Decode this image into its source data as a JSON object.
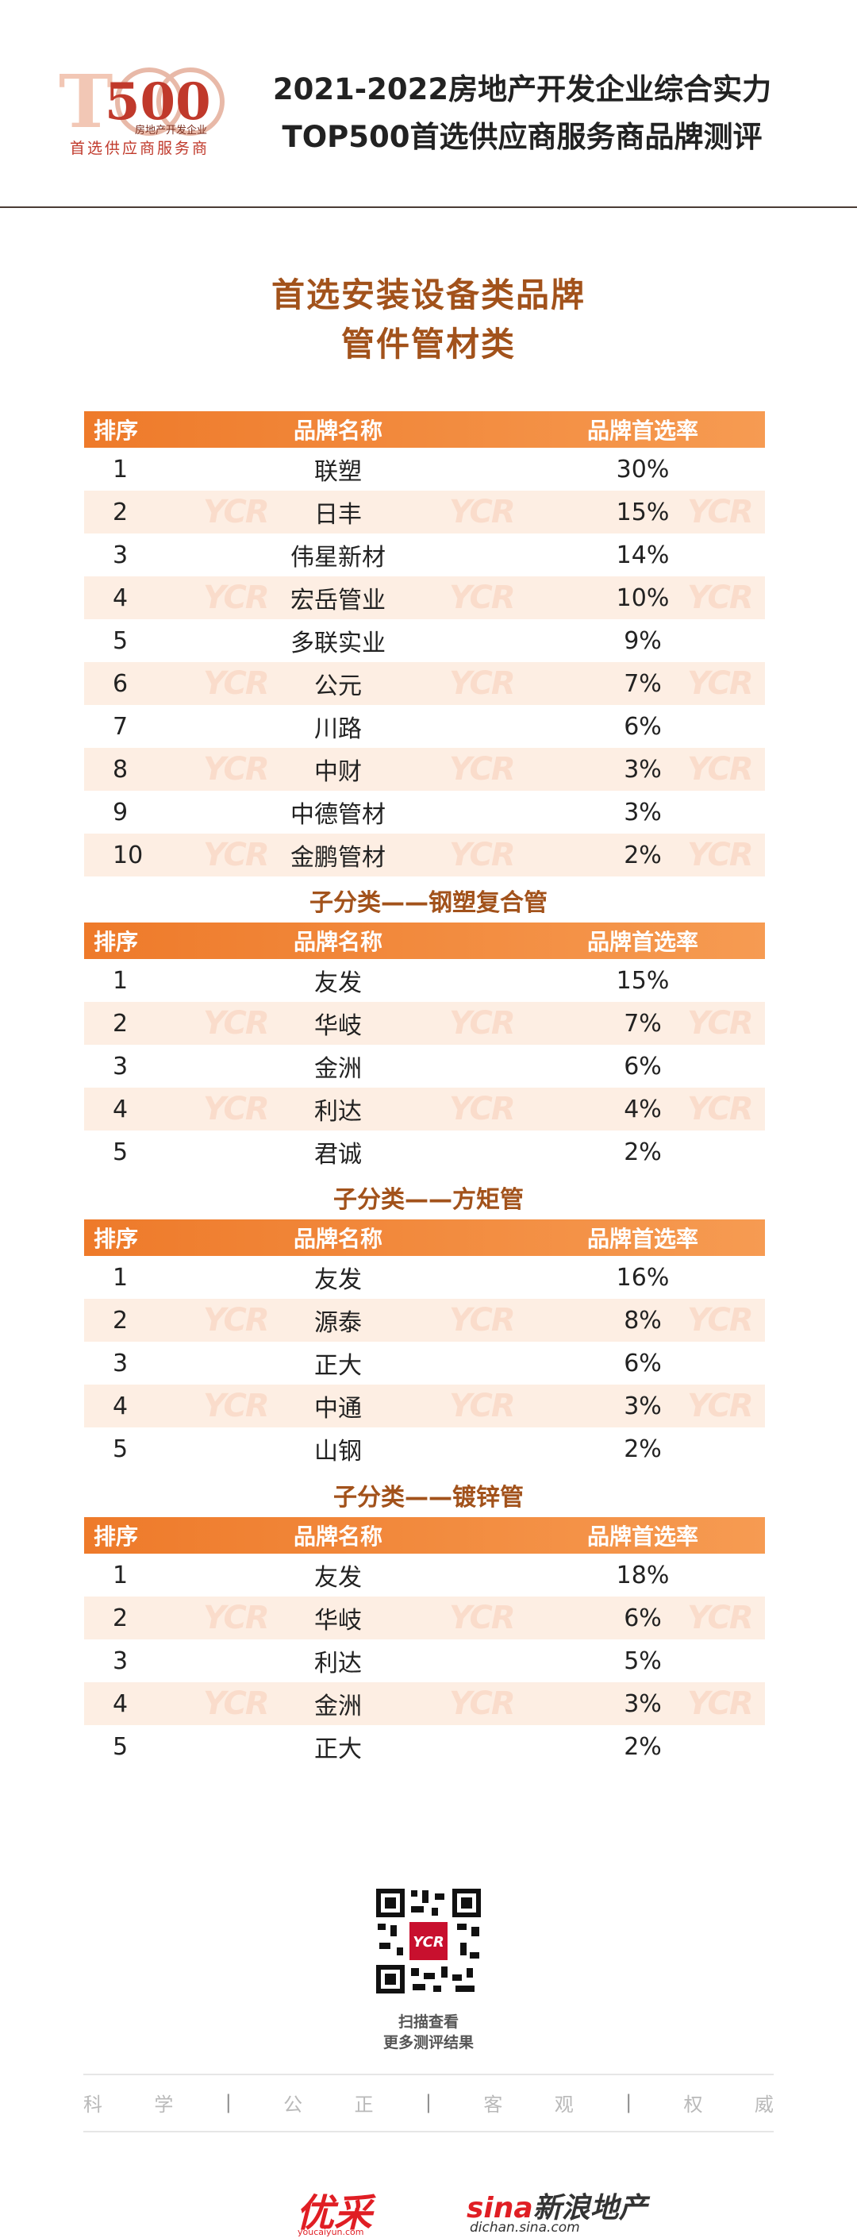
{
  "header": {
    "logo_number": "500",
    "logo_caption": "房地产开发企业",
    "logo_sub": "首选供应商服务商",
    "title_line1": "2021-2022房地产开发企业综合实力",
    "title_line2": "TOP500首选供应商服务商品牌测评"
  },
  "main": {
    "title_line1": "首选安装设备类品牌",
    "title_line2": "管件管材类"
  },
  "table_header": {
    "col_rank": "排序",
    "col_brand": "品牌名称",
    "col_rate": "品牌首选率"
  },
  "watermark": "YCR",
  "sections": [
    {
      "subtitle": "",
      "rows": [
        {
          "rank": "1",
          "brand": "联塑",
          "rate": "30%"
        },
        {
          "rank": "2",
          "brand": "日丰",
          "rate": "15%"
        },
        {
          "rank": "3",
          "brand": "伟星新材",
          "rate": "14%"
        },
        {
          "rank": "4",
          "brand": "宏岳管业",
          "rate": "10%"
        },
        {
          "rank": "5",
          "brand": "多联实业",
          "rate": "9%"
        },
        {
          "rank": "6",
          "brand": "公元",
          "rate": "7%"
        },
        {
          "rank": "7",
          "brand": "川路",
          "rate": "6%"
        },
        {
          "rank": "8",
          "brand": "中财",
          "rate": "3%"
        },
        {
          "rank": "9",
          "brand": "中德管材",
          "rate": "3%"
        },
        {
          "rank": "10",
          "brand": "金鹏管材",
          "rate": "2%"
        }
      ]
    },
    {
      "subtitle": "子分类——钢塑复合管",
      "rows": [
        {
          "rank": "1",
          "brand": "友发",
          "rate": "15%"
        },
        {
          "rank": "2",
          "brand": "华岐",
          "rate": "7%"
        },
        {
          "rank": "3",
          "brand": "金洲",
          "rate": "6%"
        },
        {
          "rank": "4",
          "brand": "利达",
          "rate": "4%"
        },
        {
          "rank": "5",
          "brand": "君诚",
          "rate": "2%"
        }
      ]
    },
    {
      "subtitle": "子分类——方矩管",
      "rows": [
        {
          "rank": "1",
          "brand": "友发",
          "rate": "16%"
        },
        {
          "rank": "2",
          "brand": "源泰",
          "rate": "8%"
        },
        {
          "rank": "3",
          "brand": "正大",
          "rate": "6%"
        },
        {
          "rank": "4",
          "brand": "中通",
          "rate": "3%"
        },
        {
          "rank": "5",
          "brand": "山钢",
          "rate": "2%"
        }
      ]
    },
    {
      "subtitle": "子分类——镀锌管",
      "rows": [
        {
          "rank": "1",
          "brand": "友发",
          "rate": "18%"
        },
        {
          "rank": "2",
          "brand": "华岐",
          "rate": "6%"
        },
        {
          "rank": "3",
          "brand": "利达",
          "rate": "5%"
        },
        {
          "rank": "4",
          "brand": "金洲",
          "rate": "3%"
        },
        {
          "rank": "5",
          "brand": "正大",
          "rate": "2%"
        }
      ]
    }
  ],
  "footer": {
    "qr_line1": "扫描查看",
    "qr_line2": "更多测评结果",
    "motto": [
      "科",
      "学",
      "公",
      "正",
      "客",
      "观",
      "权",
      "威"
    ],
    "logo1": "优采",
    "logo1_sub": "youcaiyun.com",
    "logo2_red": "sina",
    "logo2_text": "新浪地产",
    "logo2_sub": "dichan.sina.com"
  },
  "colors": {
    "accent": "#ee7a2a",
    "title": "#a2521b",
    "row_alt": "#fdeee3"
  }
}
